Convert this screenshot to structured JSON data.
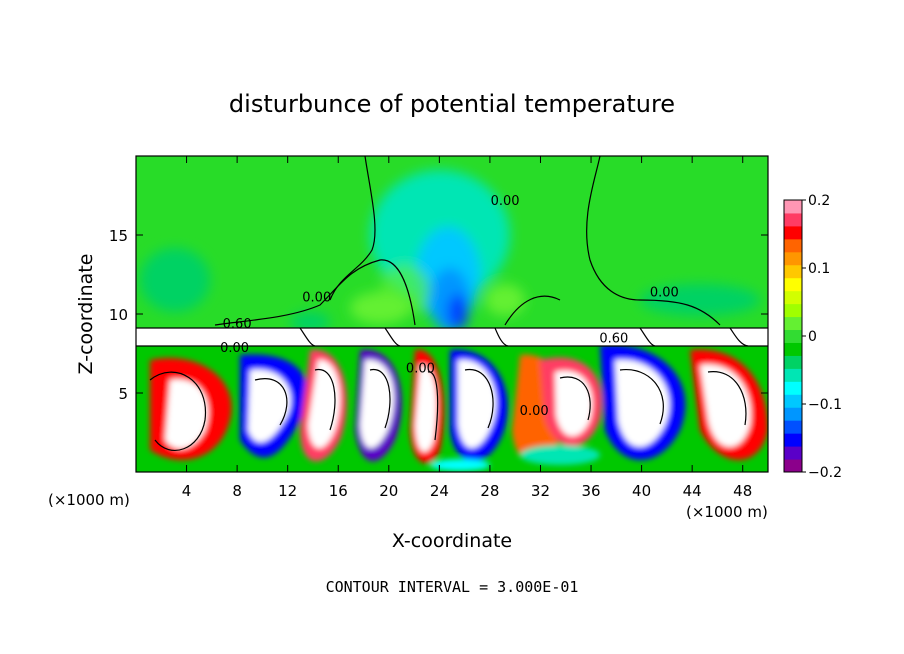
{
  "chart_data": {
    "type": "heatmap",
    "title": "disturbunce of potential temperature",
    "xlabel": "X-coordinate",
    "ylabel": "Z-coordinate",
    "x_unit_left": "(×1000 m)",
    "x_unit_right": "(×1000 m)",
    "xlim": [
      0,
      50
    ],
    "ylim": [
      0,
      20
    ],
    "x_ticks": [
      4,
      8,
      12,
      16,
      20,
      24,
      28,
      32,
      36,
      40,
      44,
      48
    ],
    "x_tick_labels": [
      "4",
      "8",
      "12",
      "16",
      "20",
      "24",
      "28",
      "32",
      "36",
      "40",
      "44",
      "48"
    ],
    "y_ticks": [
      5,
      10,
      15
    ],
    "y_tick_labels": [
      "5",
      "10",
      "15"
    ],
    "colorbar": {
      "range": [
        -0.2,
        0.2
      ],
      "ticks": [
        0.2,
        0.1,
        0,
        -0.1,
        -0.2
      ],
      "tick_labels": [
        "0.2",
        "0.1",
        "0",
        "−0.1",
        "−0.2"
      ],
      "colors": [
        "#8b008b",
        "#5a00c8",
        "#0000ff",
        "#0050ff",
        "#0096ff",
        "#00c8ff",
        "#00ffff",
        "#00e6b4",
        "#00d264",
        "#00c800",
        "#32dc32",
        "#64f032",
        "#a0ff00",
        "#d2ff00",
        "#ffff00",
        "#ffc800",
        "#ff9600",
        "#ff6400",
        "#ff0000",
        "#ff3c64",
        "#ff96b4"
      ]
    },
    "contour_labels": [
      {
        "text": "0.00",
        "x": 29.2,
        "y": 16.9
      },
      {
        "text": "0.00",
        "x": 41.8,
        "y": 11.1
      },
      {
        "text": "0.00",
        "x": 14.3,
        "y": 10.8
      },
      {
        "text": "0.60",
        "x": 8.0,
        "y": 9.1
      },
      {
        "text": "0.60",
        "x": 37.8,
        "y": 8.2
      },
      {
        "text": "0.00",
        "x": 7.8,
        "y": 7.6
      },
      {
        "text": "0.00",
        "x": 22.5,
        "y": 6.3
      },
      {
        "text": "0.00",
        "x": 31.5,
        "y": 3.6
      }
    ],
    "annotation": "CONTOUR INTERVAL = 3.000E-01"
  }
}
